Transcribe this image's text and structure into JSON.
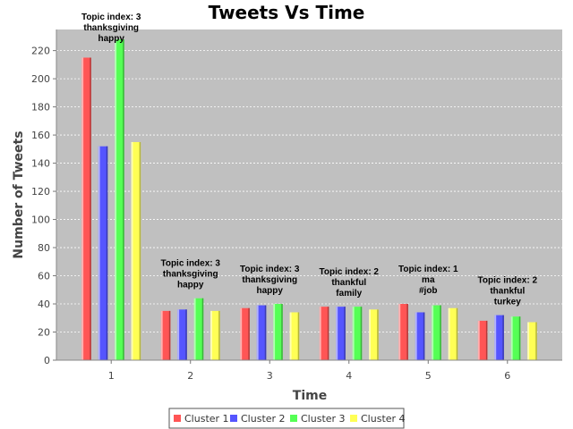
{
  "chart_data": {
    "type": "bar",
    "title": "Tweets Vs Time",
    "xlabel": "Time",
    "ylabel": "Number of Tweets",
    "categories": [
      "1",
      "2",
      "3",
      "4",
      "5",
      "6"
    ],
    "ylim": [
      0,
      235
    ],
    "yticks": [
      0,
      20,
      40,
      60,
      80,
      100,
      120,
      140,
      160,
      180,
      200,
      220
    ],
    "grid": true,
    "legend_position": "bottom",
    "series": [
      {
        "name": "Cluster 1",
        "color": "#ff5555",
        "values": [
          215,
          35,
          37,
          38,
          40,
          28
        ]
      },
      {
        "name": "Cluster 2",
        "color": "#5555ff",
        "values": [
          152,
          36,
          39,
          38,
          34,
          32
        ]
      },
      {
        "name": "Cluster 3",
        "color": "#55ff55",
        "values": [
          228,
          44,
          40,
          38,
          39,
          31
        ]
      },
      {
        "name": "Cluster 4",
        "color": "#ffff55",
        "values": [
          155,
          35,
          34,
          36,
          37,
          27
        ]
      }
    ],
    "annotations": [
      {
        "category": "1",
        "lines": [
          "Topic index: 3",
          "thanksgiving",
          "happy"
        ]
      },
      {
        "category": "2",
        "lines": [
          "Topic index: 3",
          "thanksgiving",
          "happy"
        ]
      },
      {
        "category": "3",
        "lines": [
          "Topic index: 3",
          "thanksgiving",
          "happy"
        ]
      },
      {
        "category": "4",
        "lines": [
          "Topic index: 2",
          "thankful",
          "family"
        ]
      },
      {
        "category": "5",
        "lines": [
          "Topic index: 1",
          "ma",
          "#job"
        ]
      },
      {
        "category": "6",
        "lines": [
          "Topic index: 2",
          "thankful",
          "turkey"
        ]
      }
    ]
  }
}
